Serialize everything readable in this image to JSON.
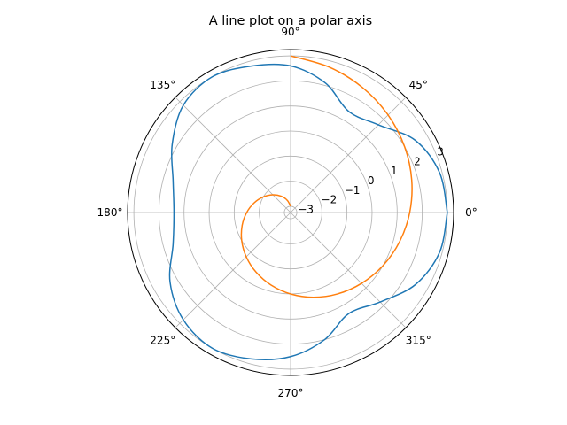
{
  "chart_data": {
    "type": "line",
    "projection": "polar",
    "title": "A line plot on a polar axis",
    "grid": true,
    "r_lim": [
      -3.25,
      3.25
    ],
    "r_ticks": [
      {
        "value": -3,
        "label": "−3"
      },
      {
        "value": -2,
        "label": "−2"
      },
      {
        "value": -1,
        "label": "−1"
      },
      {
        "value": 0,
        "label": "0"
      },
      {
        "value": 1,
        "label": "1"
      },
      {
        "value": 2,
        "label": "2"
      },
      {
        "value": 3,
        "label": "3"
      }
    ],
    "r_label_angle_deg": 22.5,
    "theta_ticks": [
      {
        "value": 0,
        "label": "0°"
      },
      {
        "value": 45,
        "label": "45°"
      },
      {
        "value": 90,
        "label": "90°"
      },
      {
        "value": 135,
        "label": "135°"
      },
      {
        "value": 180,
        "label": "180°"
      },
      {
        "value": 225,
        "label": "225°"
      },
      {
        "value": 270,
        "label": "270°"
      },
      {
        "value": 315,
        "label": "315°"
      }
    ],
    "series": [
      {
        "color": "#1f77b4",
        "theta_deg": [
          0,
          15,
          30,
          45,
          60,
          75,
          90,
          105,
          120,
          135,
          150,
          165,
          180,
          195,
          210,
          225,
          240,
          255,
          270,
          285,
          300,
          315,
          330,
          345,
          360
        ],
        "r": [
          3.0,
          2.9,
          2.5,
          1.7,
          1.4,
          2.1,
          2.6,
          2.8,
          3.0,
          2.8,
          2.2,
          1.6,
          1.4,
          1.6,
          2.3,
          2.8,
          3.0,
          2.8,
          2.5,
          2.0,
          1.4,
          1.8,
          2.5,
          2.9,
          3.0
        ]
      },
      {
        "color": "#ff7f0e",
        "theta_deg": [
          90,
          105,
          120,
          135,
          150,
          165,
          180,
          195,
          210,
          225,
          240,
          255,
          270,
          285,
          300,
          315,
          330,
          345,
          360,
          375,
          390,
          405,
          420,
          435,
          450
        ],
        "r": [
          -3.0,
          -2.75,
          -2.5,
          -2.25,
          -2.0,
          -1.75,
          -1.5,
          -1.25,
          -1.0,
          -0.75,
          -0.5,
          -0.25,
          0.0,
          0.25,
          0.5,
          0.75,
          1.0,
          1.25,
          1.5,
          1.75,
          2.0,
          2.25,
          2.5,
          2.75,
          3.0
        ]
      }
    ]
  }
}
